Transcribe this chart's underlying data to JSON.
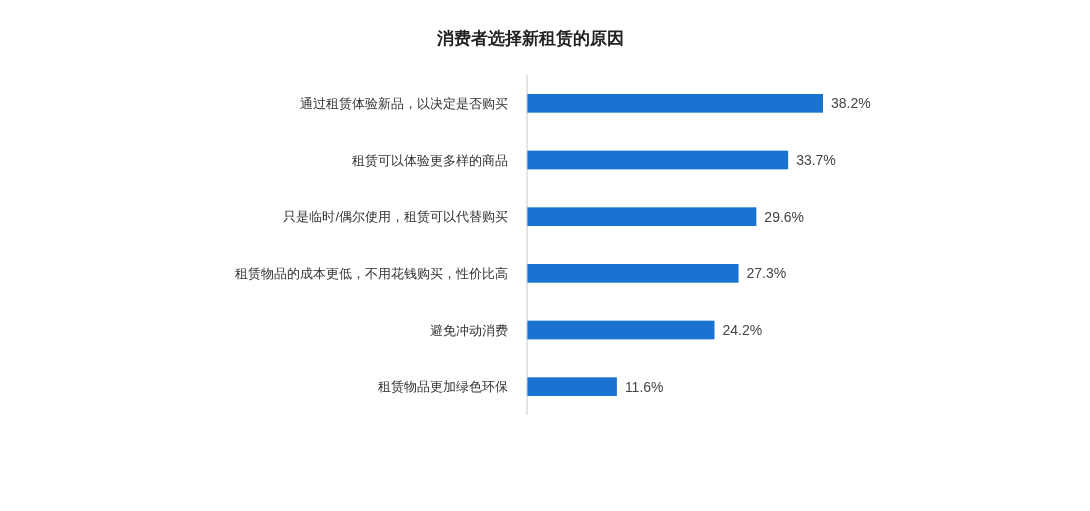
{
  "chart_data": {
    "type": "bar",
    "orientation": "horizontal",
    "title": "消费者选择新租赁的原因",
    "categories": [
      "通过租赁体验新品，以决定是否购买",
      "租赁可以体验更多样的商品",
      "只是临时/偶尔使用，租赁可以代替购买",
      "租赁物品的成本更低，不用花钱购买，性价比高",
      "避免冲动消费",
      "租赁物品更加绿色环保"
    ],
    "values": [
      38.2,
      33.7,
      29.6,
      27.3,
      24.2,
      11.6
    ],
    "value_labels": [
      "38.2%",
      "33.7%",
      "29.6%",
      "27.3%",
      "24.2%",
      "11.6%"
    ],
    "color": "#1a73d1"
  }
}
